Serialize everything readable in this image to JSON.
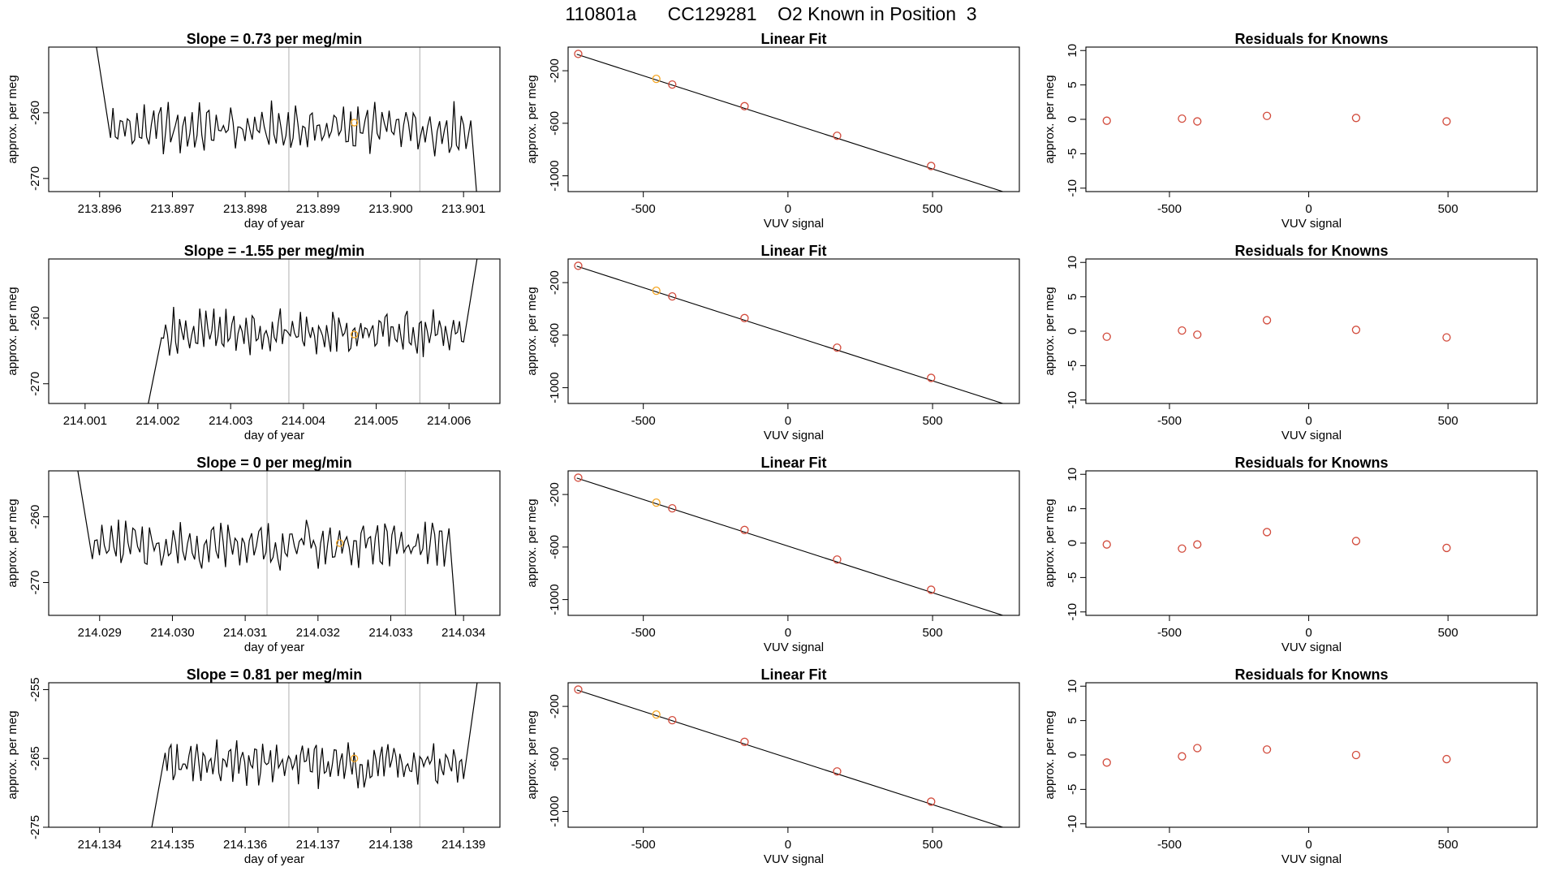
{
  "page_title": "110801a      CC129281    O2 Known in Position  3",
  "colors": {
    "trace": "#000000",
    "box": "#000000",
    "vline": "#bdbdbd",
    "known_point": "#d24b3c",
    "highlight_point": "#f5a623",
    "fit_line": "#000000"
  },
  "chart_data": [
    {
      "panel": "trace",
      "type": "line",
      "title": "Slope =  0.73  per meg/min",
      "xlabel": "day of year",
      "ylabel": "approx. per meg",
      "xlim": [
        213.8953,
        213.9015
      ],
      "ylim": [
        -272,
        -250
      ],
      "xticks": [
        213.896,
        213.897,
        213.898,
        213.899,
        213.9,
        213.901
      ],
      "xtick_labels": [
        "213.896",
        "213.897",
        "213.898",
        "213.899",
        "213.900",
        "213.901"
      ],
      "yticks": [
        -260,
        -270
      ],
      "ytick_labels": [
        "-260",
        "-270"
      ],
      "vlines": [
        213.8986,
        213.9004
      ],
      "x_start": 213.8959,
      "x_end": 213.9012,
      "base": -262.5,
      "amplitude": 2.6,
      "left_spike": {
        "from": -246,
        "len": 0.00025
      },
      "right_spike": {
        "to": -275,
        "len": 0.0001
      },
      "marker": {
        "x": 213.8995,
        "y": -261.5
      }
    },
    {
      "panel": "fit",
      "type": "scatter",
      "title": "Linear Fit",
      "xlabel": "VUV signal",
      "ylabel": "approx. per meg",
      "xlim": [
        -760,
        800
      ],
      "ylim": [
        -1120,
        -20
      ],
      "xticks": [
        -500,
        0,
        500
      ],
      "xtick_labels": [
        "-500",
        "0",
        "500"
      ],
      "yticks": [
        -200,
        -600,
        -1000
      ],
      "ytick_labels": [
        "-200",
        "-600",
        "-1000"
      ],
      "line": [
        [
          -730,
          -75
        ],
        [
          750,
          -1125
        ]
      ],
      "points": [
        {
          "x": -725,
          "y": -72,
          "color": "known"
        },
        {
          "x": -455,
          "y": -262,
          "color": "highlight"
        },
        {
          "x": -400,
          "y": -305,
          "color": "known"
        },
        {
          "x": -150,
          "y": -470,
          "color": "known"
        },
        {
          "x": 170,
          "y": -695,
          "color": "known"
        },
        {
          "x": 495,
          "y": -925,
          "color": "known"
        }
      ]
    },
    {
      "panel": "resid",
      "type": "scatter",
      "title": "Residuals for Knowns",
      "xlabel": "VUV signal",
      "ylabel": "approx. per meg",
      "xlim": [
        -800,
        820
      ],
      "ylim": [
        -10.5,
        10.5
      ],
      "xticks": [
        -500,
        0,
        500
      ],
      "xtick_labels": [
        "-500",
        "0",
        "500"
      ],
      "yticks": [
        10,
        5,
        0,
        -5,
        -10
      ],
      "ytick_labels": [
        "10",
        "5",
        "0",
        "-5",
        "-10"
      ],
      "points": [
        {
          "x": -725,
          "y": -0.2
        },
        {
          "x": -455,
          "y": 0.1
        },
        {
          "x": -400,
          "y": -0.3
        },
        {
          "x": -150,
          "y": 0.5
        },
        {
          "x": 170,
          "y": 0.2
        },
        {
          "x": 495,
          "y": -0.3
        }
      ]
    },
    {
      "panel": "trace",
      "type": "line",
      "title": "Slope =  -1.55  per meg/min",
      "xlabel": "day of year",
      "ylabel": "approx. per meg",
      "xlim": [
        214.0005,
        214.0067
      ],
      "ylim": [
        -273,
        -251
      ],
      "xticks": [
        214.001,
        214.002,
        214.003,
        214.004,
        214.005,
        214.006
      ],
      "xtick_labels": [
        "214.001",
        "214.002",
        "214.003",
        "214.004",
        "214.005",
        "214.006"
      ],
      "yticks": [
        -260,
        -270
      ],
      "ytick_labels": [
        "-260",
        "-270"
      ],
      "vlines": [
        214.0038,
        214.0056
      ],
      "x_start": 214.00185,
      "x_end": 214.0064,
      "base": -262.2,
      "amplitude": 2.4,
      "left_spike": {
        "from": -274,
        "len": 0.0002
      },
      "right_spike": {
        "to": -250,
        "len": 0.0002
      },
      "marker": {
        "x": 214.0047,
        "y": -262.5
      }
    },
    {
      "panel": "fit",
      "type": "scatter",
      "title": "Linear Fit",
      "xlabel": "VUV signal",
      "ylabel": "approx. per meg",
      "xlim": [
        -760,
        800
      ],
      "ylim": [
        -1120,
        -20
      ],
      "xticks": [
        -500,
        0,
        500
      ],
      "xtick_labels": [
        "-500",
        "0",
        "500"
      ],
      "yticks": [
        -200,
        -600,
        -1000
      ],
      "ytick_labels": [
        "-200",
        "-600",
        "-1000"
      ],
      "line": [
        [
          -730,
          -75
        ],
        [
          750,
          -1125
        ]
      ],
      "points": [
        {
          "x": -725,
          "y": -72,
          "color": "known"
        },
        {
          "x": -455,
          "y": -262,
          "color": "highlight"
        },
        {
          "x": -400,
          "y": -305,
          "color": "known"
        },
        {
          "x": -150,
          "y": -470,
          "color": "known"
        },
        {
          "x": 170,
          "y": -695,
          "color": "known"
        },
        {
          "x": 495,
          "y": -925,
          "color": "known"
        }
      ]
    },
    {
      "panel": "resid",
      "type": "scatter",
      "title": "Residuals for Knowns",
      "xlabel": "VUV signal",
      "ylabel": "approx. per meg",
      "xlim": [
        -800,
        820
      ],
      "ylim": [
        -10.5,
        10.5
      ],
      "xticks": [
        -500,
        0,
        500
      ],
      "xtick_labels": [
        "-500",
        "0",
        "500"
      ],
      "yticks": [
        10,
        5,
        0,
        -5,
        -10
      ],
      "ytick_labels": [
        "10",
        "5",
        "0",
        "-5",
        "-10"
      ],
      "points": [
        {
          "x": -725,
          "y": -0.8
        },
        {
          "x": -455,
          "y": 0.1
        },
        {
          "x": -400,
          "y": -0.5
        },
        {
          "x": -150,
          "y": 1.6
        },
        {
          "x": 170,
          "y": 0.2
        },
        {
          "x": 495,
          "y": -0.9
        }
      ]
    },
    {
      "panel": "trace",
      "type": "line",
      "title": "Slope =  0  per meg/min",
      "xlabel": "day of year",
      "ylabel": "approx. per meg",
      "xlim": [
        214.0283,
        214.0345
      ],
      "ylim": [
        -275,
        -253
      ],
      "xticks": [
        214.029,
        214.03,
        214.031,
        214.032,
        214.033,
        214.034
      ],
      "xtick_labels": [
        "214.029",
        "214.030",
        "214.031",
        "214.032",
        "214.033",
        "214.034"
      ],
      "yticks": [
        -260,
        -270
      ],
      "ytick_labels": [
        "-260",
        "-270"
      ],
      "vlines": [
        214.0313,
        214.0332
      ],
      "x_start": 214.0287,
      "x_end": 214.0339,
      "base": -264.3,
      "amplitude": 2.5,
      "left_spike": {
        "from": -253,
        "len": 0.0002
      },
      "right_spike": {
        "to": -276,
        "len": 0.0001
      },
      "marker": {
        "x": 214.0323,
        "y": -264
      }
    },
    {
      "panel": "fit",
      "type": "scatter",
      "title": "Linear Fit",
      "xlabel": "VUV signal",
      "ylabel": "approx. per meg",
      "xlim": [
        -760,
        800
      ],
      "ylim": [
        -1120,
        -20
      ],
      "xticks": [
        -500,
        0,
        500
      ],
      "xtick_labels": [
        "-500",
        "0",
        "500"
      ],
      "yticks": [
        -200,
        -600,
        -1000
      ],
      "ytick_labels": [
        "-200",
        "-600",
        "-1000"
      ],
      "line": [
        [
          -730,
          -75
        ],
        [
          750,
          -1125
        ]
      ],
      "points": [
        {
          "x": -725,
          "y": -72,
          "color": "known"
        },
        {
          "x": -455,
          "y": -262,
          "color": "highlight"
        },
        {
          "x": -400,
          "y": -305,
          "color": "known"
        },
        {
          "x": -150,
          "y": -470,
          "color": "known"
        },
        {
          "x": 170,
          "y": -695,
          "color": "known"
        },
        {
          "x": 495,
          "y": -925,
          "color": "known"
        }
      ]
    },
    {
      "panel": "resid",
      "type": "scatter",
      "title": "Residuals for Knowns",
      "xlabel": "VUV signal",
      "ylabel": "approx. per meg",
      "xlim": [
        -800,
        820
      ],
      "ylim": [
        -10.5,
        10.5
      ],
      "xticks": [
        -500,
        0,
        500
      ],
      "xtick_labels": [
        "-500",
        "0",
        "500"
      ],
      "yticks": [
        10,
        5,
        0,
        -5,
        -10
      ],
      "ytick_labels": [
        "10",
        "5",
        "0",
        "-5",
        "-10"
      ],
      "points": [
        {
          "x": -725,
          "y": -0.2
        },
        {
          "x": -455,
          "y": -0.8
        },
        {
          "x": -400,
          "y": -0.2
        },
        {
          "x": -150,
          "y": 1.6
        },
        {
          "x": 170,
          "y": 0.3
        },
        {
          "x": 495,
          "y": -0.7
        }
      ]
    },
    {
      "panel": "trace",
      "type": "line",
      "title": "Slope =  0.81  per meg/min",
      "xlabel": "day of year",
      "ylabel": "approx. per meg",
      "xlim": [
        214.1333,
        214.1395
      ],
      "ylim": [
        -275,
        -254
      ],
      "xticks": [
        214.134,
        214.135,
        214.136,
        214.137,
        214.138,
        214.139
      ],
      "xtick_labels": [
        "214.134",
        "214.135",
        "214.136",
        "214.137",
        "214.138",
        "214.139"
      ],
      "yticks": [
        -255,
        -265,
        -275
      ],
      "ytick_labels": [
        "-255",
        "-265",
        "-275"
      ],
      "vlines": [
        214.1366,
        214.1384
      ],
      "x_start": 214.1347,
      "x_end": 214.1392,
      "base": -265.8,
      "amplitude": 2.2,
      "left_spike": {
        "from": -276,
        "len": 0.0002
      },
      "right_spike": {
        "to": -253,
        "len": 0.0002
      },
      "marker": {
        "x": 214.1375,
        "y": -265
      }
    },
    {
      "panel": "fit",
      "type": "scatter",
      "title": "Linear Fit",
      "xlabel": "VUV signal",
      "ylabel": "approx. per meg",
      "xlim": [
        -760,
        800
      ],
      "ylim": [
        -1120,
        -20
      ],
      "xticks": [
        -500,
        0,
        500
      ],
      "xtick_labels": [
        "-500",
        "0",
        "500"
      ],
      "yticks": [
        -200,
        -600,
        -1000
      ],
      "ytick_labels": [
        "-200",
        "-600",
        "-1000"
      ],
      "line": [
        [
          -730,
          -75
        ],
        [
          750,
          -1125
        ]
      ],
      "points": [
        {
          "x": -725,
          "y": -72,
          "color": "known"
        },
        {
          "x": -455,
          "y": -262,
          "color": "highlight"
        },
        {
          "x": -400,
          "y": -305,
          "color": "known"
        },
        {
          "x": -150,
          "y": -470,
          "color": "known"
        },
        {
          "x": 170,
          "y": -695,
          "color": "known"
        },
        {
          "x": 495,
          "y": -925,
          "color": "known"
        }
      ]
    },
    {
      "panel": "resid",
      "type": "scatter",
      "title": "Residuals for Knowns",
      "xlabel": "VUV signal",
      "ylabel": "approx. per meg",
      "xlim": [
        -800,
        820
      ],
      "ylim": [
        -10.5,
        10.5
      ],
      "xticks": [
        -500,
        0,
        500
      ],
      "xtick_labels": [
        "-500",
        "0",
        "500"
      ],
      "yticks": [
        10,
        5,
        0,
        -5,
        -10
      ],
      "ytick_labels": [
        "10",
        "5",
        "0",
        "-5",
        "-10"
      ],
      "points": [
        {
          "x": -725,
          "y": -1.1
        },
        {
          "x": -455,
          "y": -0.2
        },
        {
          "x": -400,
          "y": 1.0
        },
        {
          "x": -150,
          "y": 0.8
        },
        {
          "x": 170,
          "y": 0.0
        },
        {
          "x": 495,
          "y": -0.6
        }
      ]
    }
  ]
}
